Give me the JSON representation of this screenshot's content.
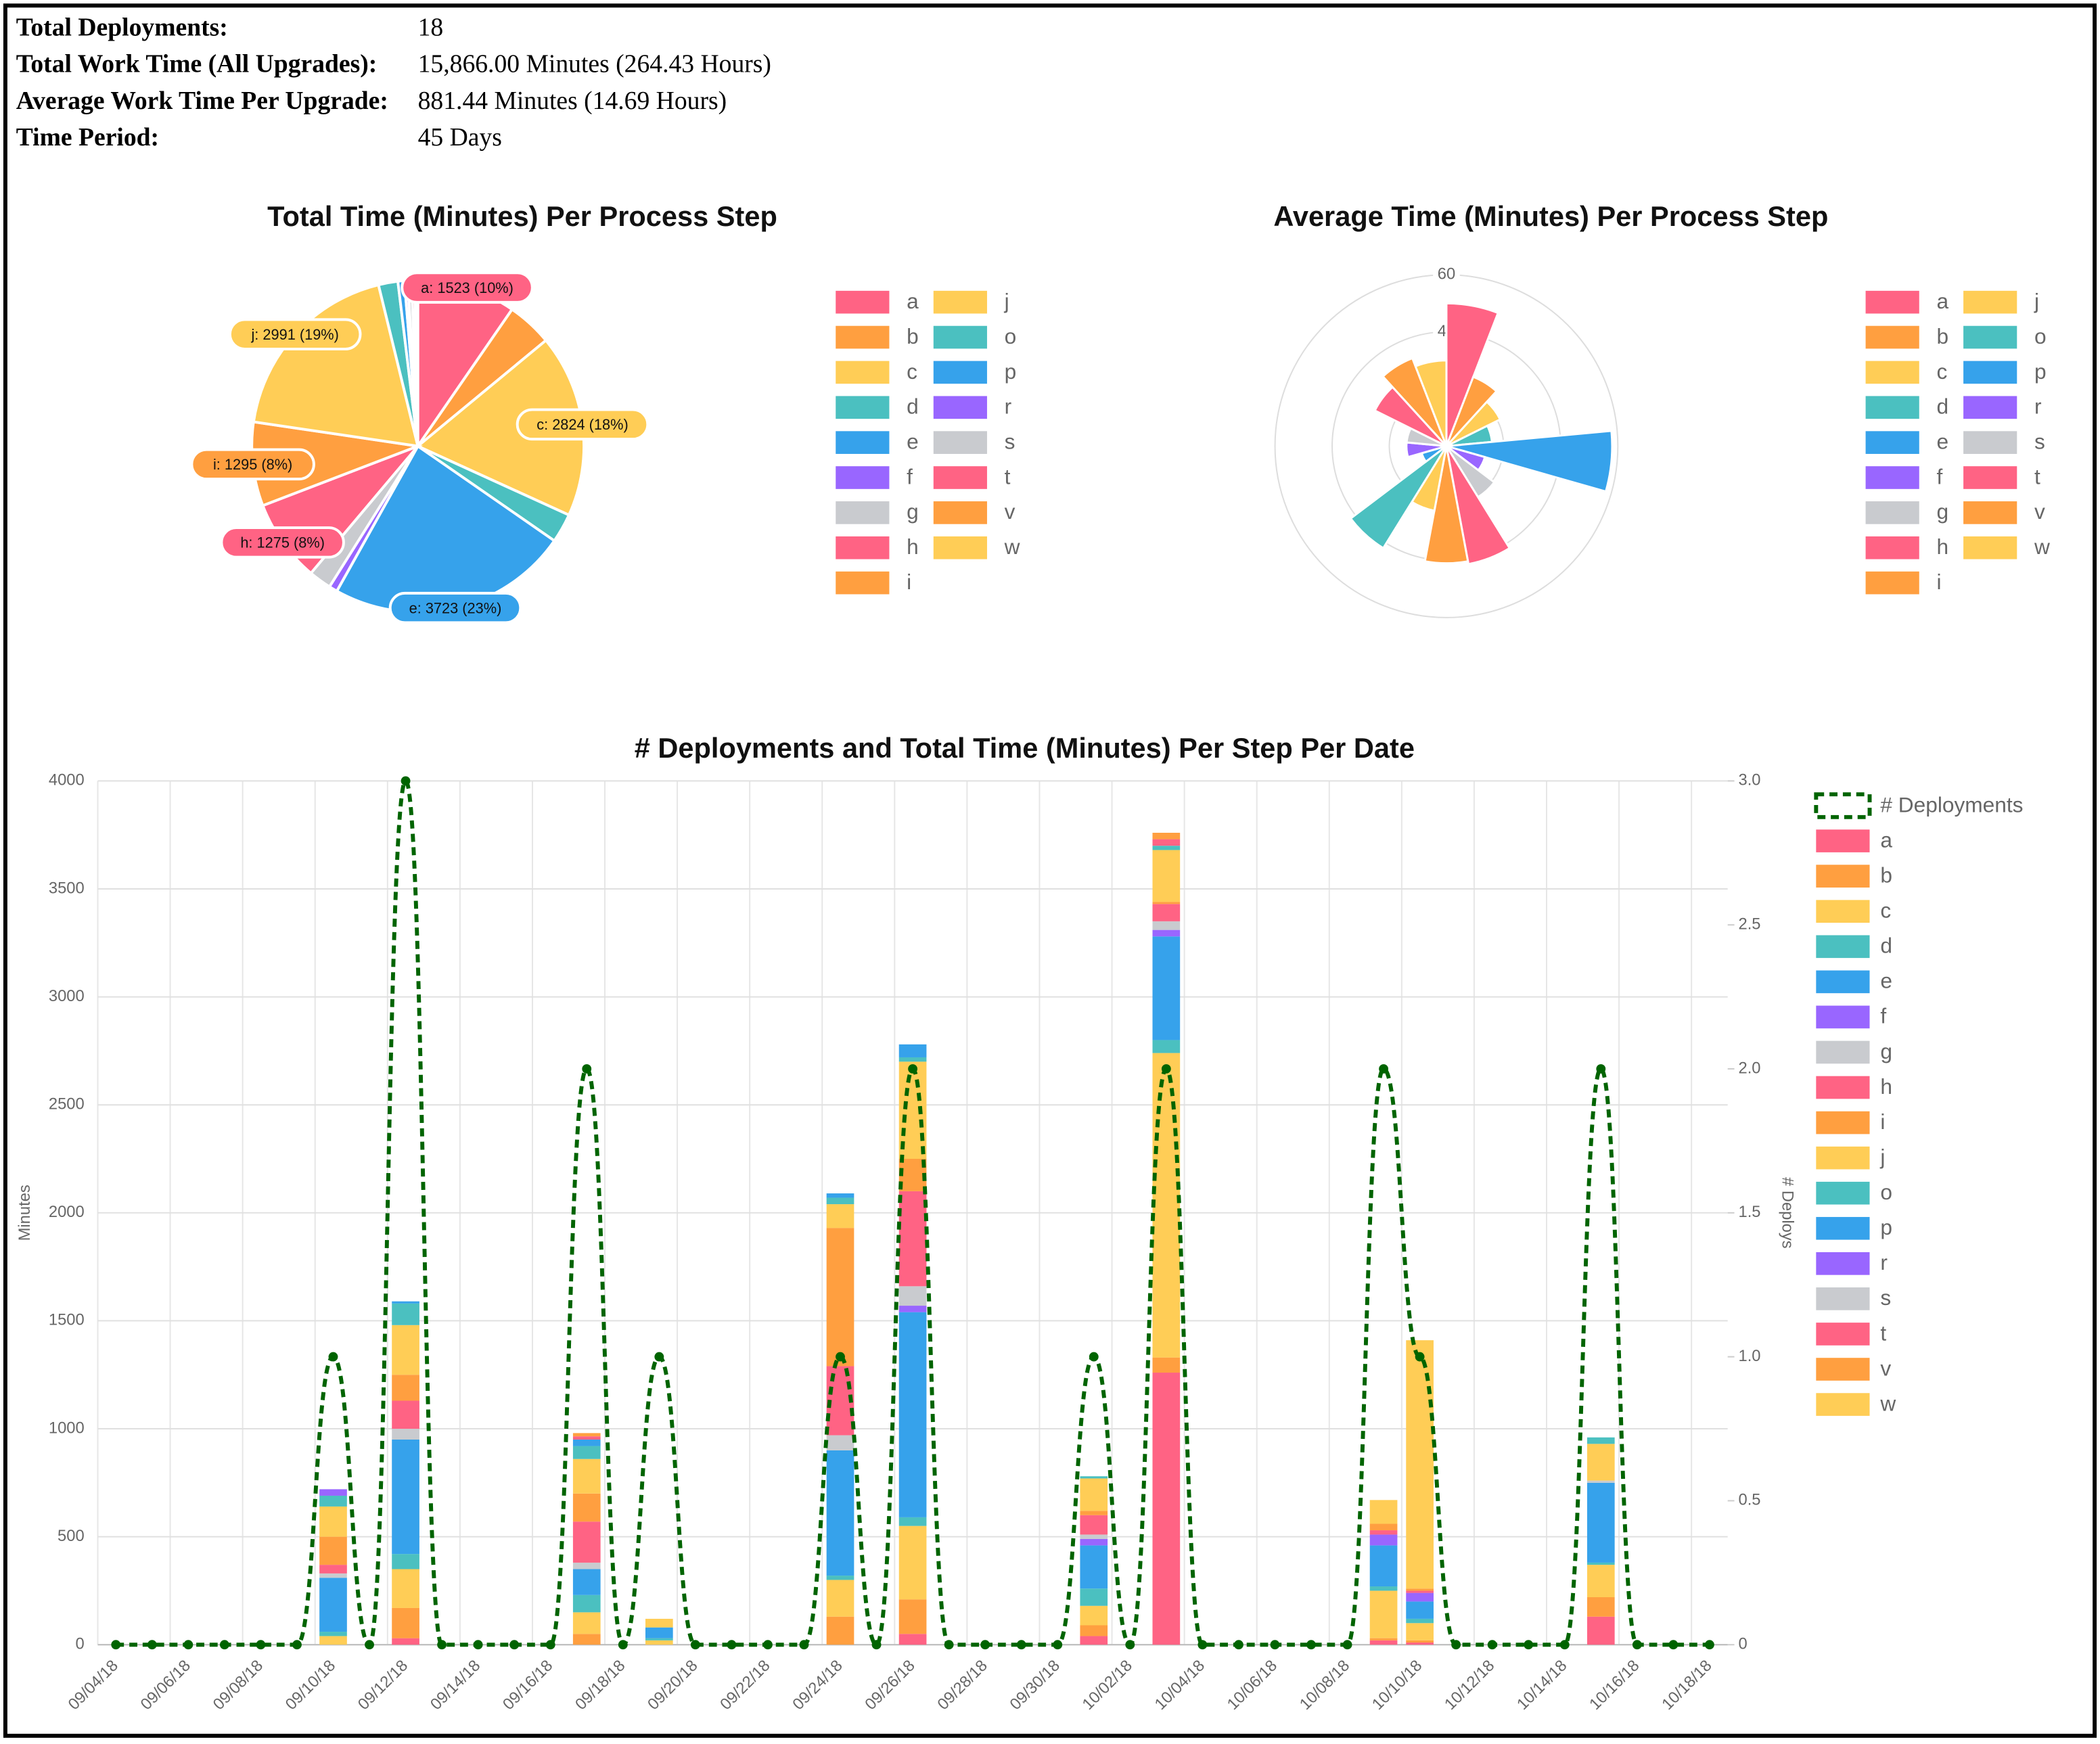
{
  "summary": {
    "rows": [
      [
        "Total Deployments:",
        "18"
      ],
      [
        "Total Work Time (All Upgrades):",
        "15,866.00 Minutes (264.43 Hours)"
      ],
      [
        "Average Work Time Per Upgrade:",
        "881.44 Minutes (14.69 Hours)"
      ],
      [
        "Time Period:",
        "45 Days"
      ]
    ]
  },
  "chart_data": [
    {
      "type": "pie",
      "title": "Total Time (Minutes) Per Process Step",
      "categories": [
        "a",
        "b",
        "c",
        "d",
        "e",
        "f",
        "g",
        "h",
        "i",
        "j",
        "o",
        "p",
        "r",
        "s",
        "t",
        "v",
        "w"
      ],
      "values": [
        1523,
        700,
        2824,
        450,
        3723,
        130,
        350,
        1275,
        1295,
        2991,
        300,
        100,
        50,
        60,
        50,
        30,
        15
      ],
      "value_labels": [
        "a: 1523 (10%)",
        null,
        "c: 2824 (18%)",
        null,
        "e: 3723 (23%)",
        null,
        null,
        "h: 1275 (8%)",
        "i: 1295 (8%)",
        "j: 2991 (19%)",
        null,
        null,
        null,
        null,
        null,
        null,
        null
      ],
      "colors": [
        "#ff6384",
        "#ff9f40",
        "#ffcd56",
        "#4bc0c0",
        "#36a2eb",
        "#9966ff",
        "#c9cbcf",
        "#ff6384",
        "#ff9f40",
        "#ffcd56",
        "#4bc0c0",
        "#36a2eb",
        "#9966ff",
        "#c9cbcf",
        "#ff6384",
        "#ff9f40",
        "#ffcd56"
      ]
    },
    {
      "type": "polarArea",
      "title": "Average Time (Minutes) Per Process Step",
      "categories": [
        "a",
        "b",
        "c",
        "d",
        "e",
        "f",
        "g",
        "h",
        "i",
        "j",
        "o",
        "p",
        "r",
        "s",
        "t",
        "v",
        "w"
      ],
      "values": [
        50,
        26,
        21,
        16,
        58,
        14,
        21,
        42,
        41,
        23,
        42,
        9,
        14,
        14,
        28,
        33,
        30
      ],
      "colors": [
        "#ff6384",
        "#ff9f40",
        "#ffcd56",
        "#4bc0c0",
        "#36a2eb",
        "#9966ff",
        "#c9cbcf",
        "#ff6384",
        "#ff9f40",
        "#ffcd56",
        "#4bc0c0",
        "#36a2eb",
        "#9966ff",
        "#c9cbcf",
        "#ff6384",
        "#ff9f40",
        "#ffcd56"
      ],
      "rlim": [
        0,
        60
      ],
      "rticks": [
        20,
        40,
        60
      ]
    },
    {
      "type": "bar",
      "stacked": true,
      "grid": true,
      "title": "# Deployments and Total Time (Minutes) Per Step Per Date",
      "ylabel": "Minutes",
      "y2label": "# Deploys",
      "ylim": [
        0,
        4000
      ],
      "yticks": [
        0,
        500,
        1000,
        1500,
        2000,
        2500,
        3000,
        3500,
        4000
      ],
      "y2lim": [
        0,
        3
      ],
      "y2ticks": [
        0,
        0.5,
        {
          "value": 1,
          "label": "1.0"
        },
        1.5,
        {
          "value": 2,
          "label": "2.0"
        },
        2.5,
        {
          "value": 3,
          "label": "3.0"
        }
      ],
      "categories": [
        "09/04/18",
        null,
        "09/06/18",
        null,
        "09/08/18",
        null,
        "09/10/18",
        null,
        "09/12/18",
        null,
        "09/14/18",
        null,
        "09/16/18",
        null,
        "09/18/18",
        null,
        "09/20/18",
        null,
        "09/22/18",
        null,
        "09/24/18",
        null,
        "09/26/18",
        null,
        "09/28/18",
        null,
        "09/30/18",
        null,
        "10/02/18",
        null,
        "10/04/18",
        null,
        "10/06/18",
        null,
        "10/08/18",
        null,
        "10/10/18",
        null,
        "10/12/18",
        null,
        "10/14/18",
        null,
        "10/16/18",
        null,
        "10/18/18"
      ],
      "series": [
        {
          "name": "# Deployments",
          "type": "line",
          "axis": "y2",
          "dashed": true,
          "color": "#006400",
          "values": [
            0,
            0,
            0,
            0,
            0,
            0,
            1,
            0,
            3,
            0,
            0,
            0,
            0,
            2,
            0,
            1,
            0,
            0,
            0,
            0,
            1,
            0,
            2,
            0,
            0,
            0,
            0,
            1,
            0,
            2,
            0,
            0,
            0,
            0,
            0,
            2,
            1,
            0,
            0,
            0,
            0,
            2,
            0,
            0,
            0
          ]
        },
        {
          "name": "a",
          "color": "#ff6384",
          "values": [
            0,
            0,
            0,
            0,
            0,
            0,
            0,
            0,
            30,
            0,
            0,
            0,
            0,
            0,
            0,
            0,
            0,
            0,
            0,
            0,
            0,
            0,
            50,
            0,
            0,
            0,
            0,
            40,
            0,
            1260,
            0,
            0,
            0,
            0,
            0,
            20,
            10,
            0,
            0,
            0,
            0,
            130,
            0,
            0,
            0
          ]
        },
        {
          "name": "b",
          "color": "#ff9f40",
          "values": [
            0,
            0,
            0,
            0,
            0,
            0,
            0,
            0,
            140,
            0,
            0,
            0,
            0,
            50,
            0,
            0,
            0,
            0,
            0,
            0,
            130,
            0,
            160,
            0,
            0,
            0,
            0,
            50,
            0,
            70,
            0,
            0,
            0,
            0,
            0,
            10,
            10,
            0,
            0,
            0,
            0,
            90,
            0,
            0,
            0
          ]
        },
        {
          "name": "c",
          "color": "#ffcd56",
          "values": [
            0,
            0,
            0,
            0,
            0,
            0,
            40,
            0,
            180,
            0,
            0,
            0,
            0,
            100,
            0,
            20,
            0,
            0,
            0,
            0,
            170,
            0,
            340,
            0,
            0,
            0,
            0,
            90,
            0,
            1410,
            0,
            0,
            0,
            0,
            0,
            220,
            80,
            0,
            0,
            0,
            0,
            150,
            0,
            0,
            0
          ]
        },
        {
          "name": "d",
          "color": "#4bc0c0",
          "values": [
            0,
            0,
            0,
            0,
            0,
            0,
            20,
            0,
            70,
            0,
            0,
            0,
            0,
            80,
            0,
            10,
            0,
            0,
            0,
            0,
            20,
            0,
            40,
            0,
            0,
            0,
            0,
            80,
            0,
            60,
            0,
            0,
            0,
            0,
            0,
            20,
            20,
            0,
            0,
            0,
            0,
            10,
            0,
            0,
            0
          ]
        },
        {
          "name": "e",
          "color": "#36a2eb",
          "values": [
            0,
            0,
            0,
            0,
            0,
            0,
            250,
            0,
            530,
            0,
            0,
            0,
            0,
            120,
            0,
            50,
            0,
            0,
            0,
            0,
            580,
            0,
            950,
            0,
            0,
            0,
            0,
            200,
            0,
            480,
            0,
            0,
            0,
            0,
            0,
            190,
            80,
            0,
            0,
            0,
            0,
            370,
            0,
            0,
            0
          ]
        },
        {
          "name": "f",
          "color": "#9966ff",
          "values": [
            0,
            0,
            0,
            0,
            0,
            0,
            0,
            0,
            0,
            0,
            0,
            0,
            0,
            0,
            0,
            0,
            0,
            0,
            0,
            0,
            0,
            0,
            30,
            0,
            0,
            0,
            0,
            30,
            0,
            30,
            0,
            0,
            0,
            0,
            0,
            50,
            40,
            0,
            0,
            0,
            0,
            0,
            0,
            0,
            0
          ]
        },
        {
          "name": "g",
          "color": "#c9cbcf",
          "values": [
            0,
            0,
            0,
            0,
            0,
            0,
            20,
            0,
            50,
            0,
            0,
            0,
            0,
            30,
            0,
            0,
            0,
            0,
            0,
            0,
            70,
            0,
            90,
            0,
            0,
            0,
            0,
            20,
            0,
            40,
            0,
            0,
            0,
            0,
            0,
            0,
            0,
            0,
            0,
            0,
            0,
            10,
            0,
            0,
            0
          ]
        },
        {
          "name": "h",
          "color": "#ff6384",
          "values": [
            0,
            0,
            0,
            0,
            0,
            0,
            40,
            0,
            130,
            0,
            0,
            0,
            0,
            190,
            0,
            0,
            0,
            0,
            0,
            0,
            320,
            0,
            440,
            0,
            0,
            0,
            0,
            90,
            0,
            80,
            0,
            0,
            0,
            0,
            0,
            20,
            10,
            0,
            0,
            0,
            0,
            0,
            0,
            0,
            0
          ]
        },
        {
          "name": "i",
          "color": "#ff9f40",
          "values": [
            0,
            0,
            0,
            0,
            0,
            0,
            130,
            0,
            120,
            0,
            0,
            0,
            0,
            130,
            0,
            0,
            0,
            0,
            0,
            0,
            640,
            0,
            150,
            0,
            0,
            0,
            0,
            20,
            0,
            10,
            0,
            0,
            0,
            0,
            0,
            30,
            10,
            0,
            0,
            0,
            0,
            0,
            0,
            0,
            0
          ]
        },
        {
          "name": "j",
          "color": "#ffcd56",
          "values": [
            0,
            0,
            0,
            0,
            0,
            0,
            140,
            0,
            230,
            0,
            0,
            0,
            0,
            160,
            0,
            40,
            0,
            0,
            0,
            0,
            110,
            0,
            450,
            0,
            0,
            0,
            0,
            150,
            0,
            240,
            0,
            0,
            0,
            0,
            0,
            110,
            1150,
            0,
            0,
            0,
            0,
            170,
            0,
            0,
            0
          ]
        },
        {
          "name": "o",
          "color": "#4bc0c0",
          "values": [
            0,
            0,
            0,
            0,
            0,
            0,
            50,
            0,
            100,
            0,
            0,
            0,
            0,
            60,
            0,
            0,
            0,
            0,
            0,
            0,
            30,
            0,
            20,
            0,
            0,
            0,
            0,
            10,
            0,
            20,
            0,
            0,
            0,
            0,
            0,
            0,
            0,
            0,
            0,
            0,
            0,
            30,
            0,
            0,
            0
          ]
        },
        {
          "name": "p",
          "color": "#36a2eb",
          "values": [
            0,
            0,
            0,
            0,
            0,
            0,
            0,
            0,
            10,
            0,
            0,
            0,
            0,
            30,
            0,
            0,
            0,
            0,
            0,
            0,
            20,
            0,
            60,
            0,
            0,
            0,
            0,
            0,
            0,
            0,
            0,
            0,
            0,
            0,
            0,
            0,
            0,
            0,
            0,
            0,
            0,
            0,
            0,
            0,
            0
          ]
        },
        {
          "name": "r",
          "color": "#9966ff",
          "values": [
            0,
            0,
            0,
            0,
            0,
            0,
            30,
            0,
            0,
            0,
            0,
            0,
            0,
            0,
            0,
            0,
            0,
            0,
            0,
            0,
            0,
            0,
            0,
            0,
            0,
            0,
            0,
            0,
            0,
            0,
            0,
            0,
            0,
            0,
            0,
            0,
            0,
            0,
            0,
            0,
            0,
            0,
            0,
            0,
            0
          ]
        },
        {
          "name": "s",
          "color": "#c9cbcf",
          "values": [
            0,
            0,
            0,
            0,
            0,
            0,
            0,
            0,
            0,
            0,
            0,
            0,
            0,
            0,
            0,
            0,
            0,
            0,
            0,
            0,
            0,
            0,
            0,
            0,
            0,
            0,
            0,
            0,
            0,
            0,
            0,
            0,
            0,
            0,
            0,
            0,
            0,
            0,
            0,
            0,
            0,
            0,
            0,
            0,
            0
          ]
        },
        {
          "name": "t",
          "color": "#ff6384",
          "values": [
            0,
            0,
            0,
            0,
            0,
            0,
            0,
            0,
            0,
            0,
            0,
            0,
            0,
            15,
            0,
            0,
            0,
            0,
            0,
            0,
            0,
            0,
            0,
            0,
            0,
            0,
            0,
            0,
            0,
            30,
            0,
            0,
            0,
            0,
            0,
            0,
            0,
            0,
            0,
            0,
            0,
            0,
            0,
            0,
            0
          ]
        },
        {
          "name": "v",
          "color": "#ff9f40",
          "values": [
            0,
            0,
            0,
            0,
            0,
            0,
            0,
            0,
            0,
            0,
            0,
            0,
            0,
            15,
            0,
            0,
            0,
            0,
            0,
            0,
            0,
            0,
            0,
            0,
            0,
            0,
            0,
            0,
            0,
            30,
            0,
            0,
            0,
            0,
            0,
            0,
            0,
            0,
            0,
            0,
            0,
            0,
            0,
            0,
            0
          ]
        },
        {
          "name": "w",
          "color": "#ffcd56",
          "values": [
            0,
            0,
            0,
            0,
            0,
            0,
            0,
            0,
            0,
            0,
            0,
            0,
            0,
            0,
            0,
            0,
            0,
            0,
            0,
            0,
            0,
            0,
            0,
            0,
            0,
            0,
            0,
            0,
            0,
            0,
            0,
            0,
            0,
            0,
            0,
            0,
            0,
            0,
            0,
            0,
            0,
            0,
            0,
            0,
            0
          ]
        }
      ]
    }
  ]
}
